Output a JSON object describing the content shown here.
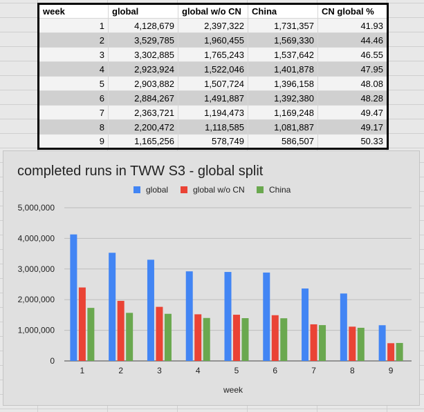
{
  "table": {
    "headers": [
      "week",
      "global",
      "global w/o CN",
      "China",
      "CN global %"
    ],
    "rows": [
      [
        "1",
        "4,128,679",
        "2,397,322",
        "1,731,357",
        "41.93"
      ],
      [
        "2",
        "3,529,785",
        "1,960,455",
        "1,569,330",
        "44.46"
      ],
      [
        "3",
        "3,302,885",
        "1,765,243",
        "1,537,642",
        "46.55"
      ],
      [
        "4",
        "2,923,924",
        "1,522,046",
        "1,401,878",
        "47.95"
      ],
      [
        "5",
        "2,903,882",
        "1,507,724",
        "1,396,158",
        "48.08"
      ],
      [
        "6",
        "2,884,267",
        "1,491,887",
        "1,392,380",
        "48.28"
      ],
      [
        "7",
        "2,363,721",
        "1,194,473",
        "1,169,248",
        "49.47"
      ],
      [
        "8",
        "2,200,472",
        "1,118,585",
        "1,081,887",
        "49.17"
      ],
      [
        "9",
        "1,165,256",
        "578,749",
        "586,507",
        "50.33"
      ]
    ]
  },
  "chart_data": {
    "type": "bar",
    "title": "completed runs in TWW S3 - global split",
    "xlabel": "week",
    "ylabel": "",
    "categories": [
      "1",
      "2",
      "3",
      "4",
      "5",
      "6",
      "7",
      "8",
      "9"
    ],
    "series": [
      {
        "name": "global",
        "color": "#4285f4",
        "values": [
          4128679,
          3529785,
          3302885,
          2923924,
          2903882,
          2884267,
          2363721,
          2200472,
          1165256
        ]
      },
      {
        "name": "global w/o CN",
        "color": "#ea4335",
        "values": [
          2397322,
          1960455,
          1765243,
          1522046,
          1507724,
          1491887,
          1194473,
          1118585,
          578749
        ]
      },
      {
        "name": "China",
        "color": "#6aa84f",
        "values": [
          1731357,
          1569330,
          1537642,
          1401878,
          1396158,
          1392380,
          1169248,
          1081887,
          586507
        ]
      }
    ],
    "ylim": [
      0,
      5000000
    ],
    "yticks": [
      0,
      1000000,
      2000000,
      3000000,
      4000000,
      5000000
    ],
    "ytick_labels": [
      "0",
      "1,000,000",
      "2,000,000",
      "3,000,000",
      "4,000,000",
      "5,000,000"
    ],
    "grid": true,
    "legend_position": "top"
  }
}
